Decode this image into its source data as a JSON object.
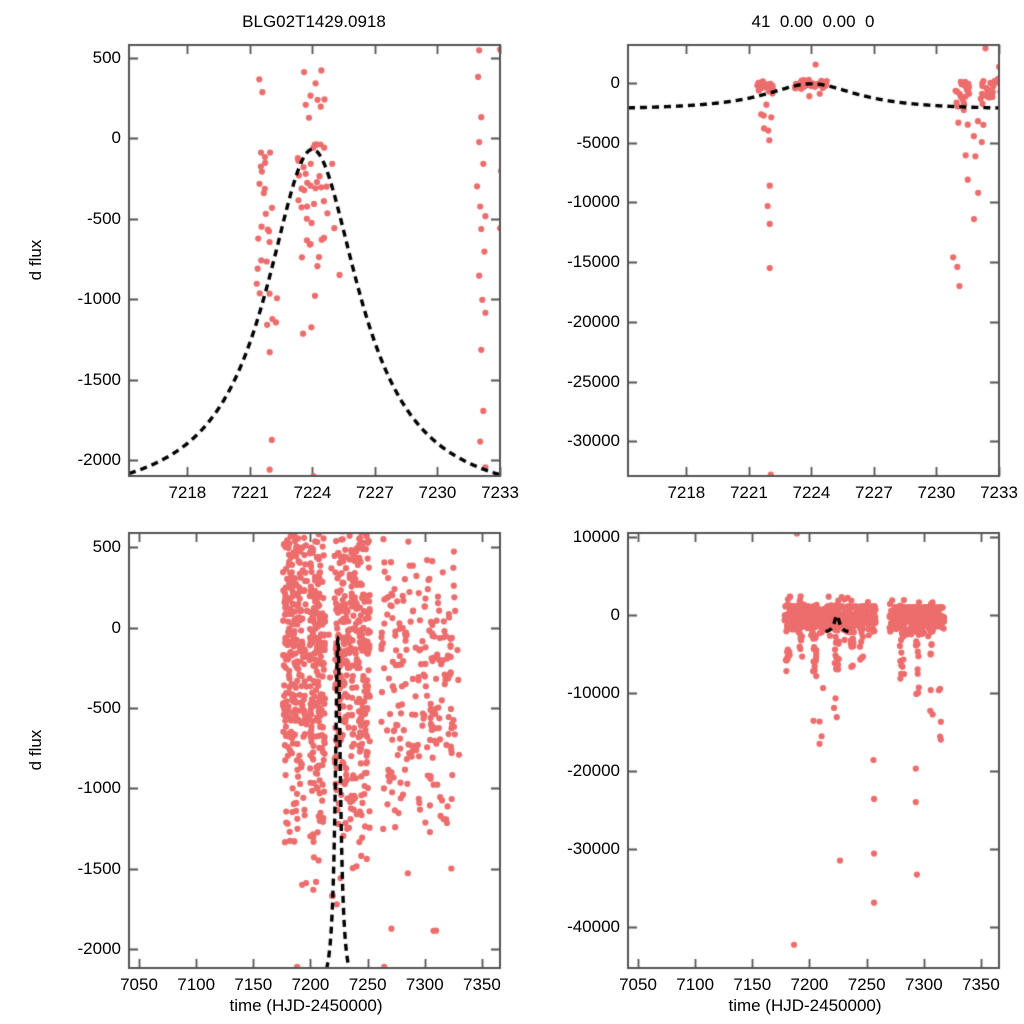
{
  "figure": {
    "background": "#ffffff",
    "point_color": "#ed6d6d",
    "model_color": "#000000",
    "axis_color": "#545454",
    "text_color": "#000000"
  },
  "labels": {
    "title_left": "BLG02T1429.0918",
    "title_right": "41  0.00  0.00  0",
    "ylabel": "d flux",
    "xlabel": "time (HJD-2450000)"
  },
  "chart_data": [
    {
      "id": "top-left",
      "type": "scatter",
      "title": "BLG02T1429.0918",
      "xlabel": "",
      "ylabel": "d flux",
      "x_range": [
        7215.2,
        7233
      ],
      "y_range": [
        -2099,
        578
      ],
      "xticks": [
        7218,
        7221,
        7224,
        7227,
        7230,
        7233
      ],
      "yticks": [
        500,
        0,
        -500,
        -1000,
        -1500,
        -2000
      ],
      "grid": false,
      "legend": false,
      "model_curve": {
        "style": "dashed",
        "t0": 7224,
        "peak": -70,
        "baseline": -2280,
        "width": 2.75,
        "x_min": 7215.2,
        "x_max": 7233
      },
      "clusters": [
        {
          "x": [
            7221.3,
            7222.15
          ],
          "n": 24,
          "y_mean": -620,
          "y_sd": 330,
          "y_clamp": [
            -1160,
            -90
          ]
        },
        {
          "x": [
            7223.3,
            7224.75
          ],
          "n": 36,
          "y_mean": -420,
          "y_sd": 300,
          "y_clamp": [
            -980,
            -40
          ]
        },
        {
          "x": [
            7223.4,
            7224.6
          ],
          "n": 8,
          "y_mean": 120,
          "y_sd": 170,
          "y_clamp": [
            -60,
            420
          ]
        }
      ],
      "points": [
        [
          7221.45,
          365
        ],
        [
          7221.6,
          285
        ],
        [
          7222.3,
          -995
        ],
        [
          7222.25,
          -1145
        ],
        [
          7221.95,
          -1330
        ],
        [
          7222.05,
          -1875
        ],
        [
          7221.95,
          -2060
        ],
        [
          7223.6,
          410
        ],
        [
          7224.15,
          340
        ],
        [
          7224.4,
          195
        ],
        [
          7223.95,
          -1175
        ],
        [
          7223.55,
          -1215
        ],
        [
          7224.05,
          -2100
        ],
        [
          7225.05,
          -560
        ],
        [
          7224.95,
          -160
        ],
        [
          7225.3,
          -850
        ],
        [
          7232.0,
          545
        ],
        [
          7231.95,
          380
        ],
        [
          7232.1,
          130
        ],
        [
          7232.0,
          -25
        ],
        [
          7232.2,
          -160
        ],
        [
          7231.9,
          -300
        ],
        [
          7232.05,
          -425
        ],
        [
          7232.3,
          -485
        ],
        [
          7232.1,
          -565
        ],
        [
          7232.25,
          -705
        ],
        [
          7232.0,
          -855
        ],
        [
          7232.15,
          -1005
        ],
        [
          7232.3,
          -1085
        ],
        [
          7232.1,
          -1315
        ],
        [
          7232.2,
          -1695
        ],
        [
          7232.05,
          -1885
        ],
        [
          7232.3,
          -2045
        ],
        [
          7233.0,
          550
        ],
        [
          7233.05,
          -205
        ],
        [
          7233.0,
          -560
        ],
        [
          7233.1,
          -1030
        ]
      ]
    },
    {
      "id": "top-right",
      "type": "scatter",
      "title": "41  0.00  0.00  0",
      "xlabel": "",
      "ylabel": "",
      "x_range": [
        7215.2,
        7233
      ],
      "y_range": [
        -32914,
        3182
      ],
      "xticks": [
        7218,
        7221,
        7224,
        7227,
        7230,
        7233
      ],
      "yticks": [
        0,
        -5000,
        -10000,
        -15000,
        -20000,
        -25000,
        -30000
      ],
      "grid": false,
      "legend": false,
      "model_curve": {
        "style": "dashed",
        "t0": 7224,
        "peak": -70,
        "baseline": -2280,
        "width": 2.75,
        "x_min": 7215.2,
        "x_max": 7233
      },
      "clusters": [
        {
          "x": [
            7221.3,
            7222.15
          ],
          "n": 30,
          "y_mean": -350,
          "y_sd": 260,
          "y_clamp": [
            -900,
            130
          ]
        },
        {
          "x": [
            7223.2,
            7224.8
          ],
          "n": 34,
          "y_mean": -120,
          "y_sd": 200,
          "y_clamp": [
            -640,
            270
          ]
        },
        {
          "x": [
            7230.9,
            7231.6
          ],
          "n": 22,
          "y_mean": -800,
          "y_sd": 750,
          "y_clamp": [
            -2600,
            100
          ]
        },
        {
          "x": [
            7232.1,
            7232.8
          ],
          "n": 22,
          "y_mean": -600,
          "y_sd": 650,
          "y_clamp": [
            -2400,
            160
          ]
        },
        {
          "x": [
            7232.9,
            7233.2
          ],
          "n": 6,
          "y_mean": -300,
          "y_sd": 500,
          "y_clamp": [
            -1500,
            350
          ]
        },
        {
          "x": [
            7231.0,
            7232.6
          ],
          "n": 8,
          "y_uniform": [
            -6500,
            -3000
          ]
        },
        {
          "x": [
            7221.5,
            7222.1
          ],
          "n": 7,
          "y_uniform": [
            -5300,
            -1400
          ]
        }
      ],
      "points": [
        [
          7224.2,
          1550
        ],
        [
          7232.35,
          2900
        ],
        [
          7233.0,
          1350
        ],
        [
          7233.05,
          300
        ],
        [
          7222.0,
          -8600
        ],
        [
          7221.9,
          -10300
        ],
        [
          7222.0,
          -11800
        ],
        [
          7222.0,
          -15500
        ],
        [
          7222.05,
          -32800
        ],
        [
          7231.5,
          -8100
        ],
        [
          7232.0,
          -9200
        ],
        [
          7231.8,
          -11400
        ],
        [
          7230.8,
          -14600
        ],
        [
          7231.0,
          -15400
        ],
        [
          7231.1,
          -17000
        ],
        [
          7224.4,
          -900
        ],
        [
          7223.9,
          -1100
        ]
      ]
    },
    {
      "id": "bottom-left",
      "type": "scatter",
      "title": "",
      "xlabel": "time (HJD-2450000)",
      "ylabel": "d flux",
      "x_range": [
        7041.25,
        7365.8
      ],
      "y_range": [
        -2117,
        588
      ],
      "xticks": [
        7050,
        7100,
        7150,
        7200,
        7250,
        7300,
        7350
      ],
      "yticks": [
        500,
        0,
        -500,
        -1000,
        -1500,
        -2000
      ],
      "grid": false,
      "legend": false,
      "model_curve": {
        "style": "dashed",
        "t0": 7224,
        "peak": -70,
        "baseline": -2280,
        "width": 2.75,
        "x_min": 7214,
        "x_max": 7234
      },
      "clusters": [
        {
          "x": [
            7176,
            7197
          ],
          "n": 240,
          "y_mean": -300,
          "y_sd": 520,
          "y_clamp": [
            -2110,
            750
          ]
        },
        {
          "x": [
            7176,
            7197
          ],
          "n": 45,
          "y_uniform": [
            -120,
            570
          ]
        },
        {
          "x": [
            7199,
            7213
          ],
          "n": 190,
          "y_mean": -300,
          "y_sd": 520,
          "y_clamp": [
            -2110,
            750
          ]
        },
        {
          "x": [
            7199,
            7213
          ],
          "n": 35,
          "y_uniform": [
            -120,
            570
          ]
        },
        {
          "x": [
            7221,
            7252
          ],
          "n": 320,
          "y_mean": -330,
          "y_sd": 540,
          "y_clamp": [
            -2110,
            750
          ]
        },
        {
          "x": [
            7221,
            7252
          ],
          "n": 60,
          "y_uniform": [
            -120,
            570
          ]
        },
        {
          "x": [
            7262,
            7330
          ],
          "n": 215,
          "y_mean": -480,
          "y_sd": 520,
          "y_clamp": [
            -2110,
            750
          ]
        },
        {
          "x": [
            7262,
            7330
          ],
          "n": 30,
          "y_uniform": [
            -200,
            550
          ]
        },
        {
          "x": [
            7214.5,
            7220.5
          ],
          "n": 5,
          "y_uniform": [
            -1800,
            400
          ]
        }
      ],
      "points": []
    },
    {
      "id": "bottom-right",
      "type": "scatter",
      "title": "",
      "xlabel": "time (HJD-2450000)",
      "ylabel": "",
      "x_range": [
        7041.25,
        7365.8
      ],
      "y_range": [
        -45280,
        10515
      ],
      "xticks": [
        7050,
        7100,
        7150,
        7200,
        7250,
        7300,
        7350
      ],
      "yticks": [
        10000,
        0,
        -10000,
        -20000,
        -30000,
        -40000
      ],
      "grid": false,
      "legend": false,
      "model_curve": {
        "style": "dashed",
        "t0": 7224,
        "peak": -70,
        "baseline": -2280,
        "width": 2.75,
        "x_min": 7214,
        "x_max": 7234
      },
      "clusters": [
        {
          "x": [
            7178,
            7258
          ],
          "n": 430,
          "y_mean": -350,
          "y_sd": 950,
          "y_clamp": [
            -3200,
            1100
          ]
        },
        {
          "x": [
            7270,
            7318
          ],
          "n": 270,
          "y_mean": -420,
          "y_sd": 950,
          "y_clamp": [
            -3200,
            1000
          ]
        },
        {
          "x": [
            7178,
            7258
          ],
          "n": 25,
          "y_uniform": [
            700,
            2400
          ]
        },
        {
          "x": [
            7270,
            7318
          ],
          "n": 12,
          "y_uniform": [
            600,
            2000
          ]
        },
        {
          "x": [
            7179,
            7183
          ],
          "n": 10,
          "y_uniform": [
            -7500,
            -1500
          ]
        },
        {
          "x": [
            7191,
            7194
          ],
          "n": 8,
          "y_uniform": [
            -6000,
            -1500
          ]
        },
        {
          "x": [
            7203,
            7206
          ],
          "n": 14,
          "y_uniform": [
            -8000,
            -1500
          ]
        },
        {
          "x": [
            7222,
            7226
          ],
          "n": 16,
          "y_uniform": [
            -9000,
            -1500
          ]
        },
        {
          "x": [
            7236,
            7239
          ],
          "n": 10,
          "y_uniform": [
            -7000,
            -1500
          ]
        },
        {
          "x": [
            7244,
            7247
          ],
          "n": 8,
          "y_uniform": [
            -6000,
            -1500
          ]
        },
        {
          "x": [
            7203,
            7226
          ],
          "n": 8,
          "y_uniform": [
            -17000,
            -9000
          ]
        },
        {
          "x": [
            7279,
            7283
          ],
          "n": 12,
          "y_uniform": [
            -8500,
            -1500
          ]
        },
        {
          "x": [
            7293,
            7296
          ],
          "n": 10,
          "y_uniform": [
            -10500,
            -1500
          ]
        },
        {
          "x": [
            7305,
            7308
          ],
          "n": 9,
          "y_uniform": [
            -13500,
            -1500
          ]
        },
        {
          "x": [
            7313,
            7316
          ],
          "n": 6,
          "y_uniform": [
            -17500,
            -1500
          ]
        }
      ],
      "points": [
        [
          7189,
          10450
        ],
        [
          7256,
          -18600
        ],
        [
          7256.5,
          -23600
        ],
        [
          7226.7,
          -31500
        ],
        [
          7256.5,
          -30600
        ],
        [
          7293,
          -19700
        ],
        [
          7293,
          -24000
        ],
        [
          7294,
          -33300
        ],
        [
          7256.5,
          -36900
        ],
        [
          7186.5,
          -42300
        ],
        [
          7257,
          -45600
        ]
      ]
    }
  ]
}
